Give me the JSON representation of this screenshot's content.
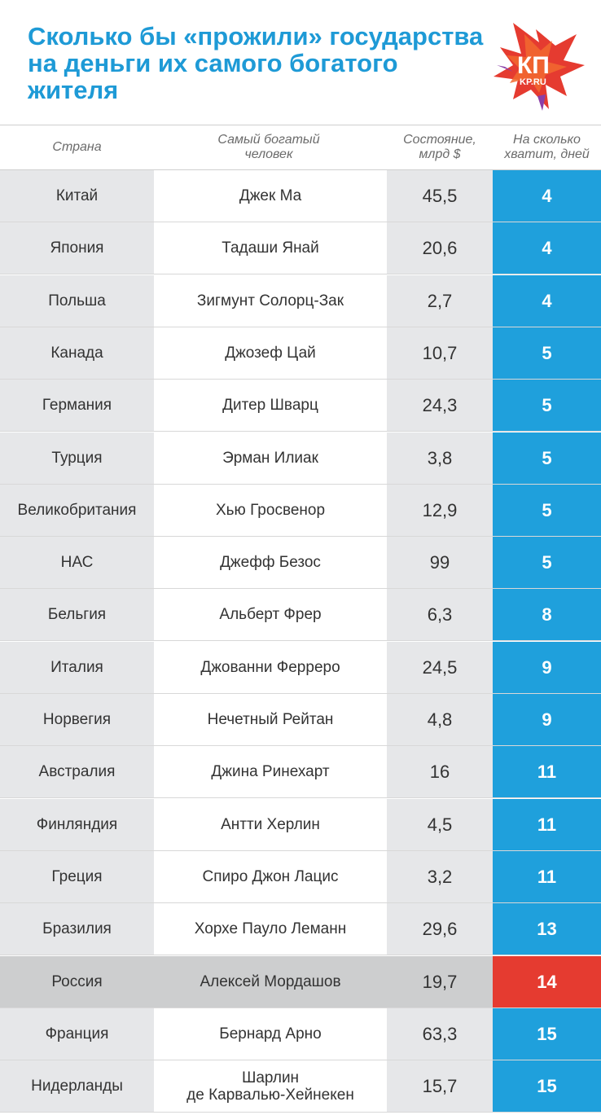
{
  "title": "Сколько бы «прожили» государства на деньги их самого богатого жителя",
  "logo": {
    "text": "КП",
    "subtext": "KP.RU"
  },
  "colors": {
    "accent": "#1e9ad6",
    "days_bg": "#1fa0dc",
    "highlight_bg": "#e53b30",
    "country_bg": "#e6e7e9"
  },
  "chart_data": {
    "type": "table",
    "columns": [
      "Страна",
      "Самый богатый человек",
      "Состояние, млрд $",
      "На сколько хватит, дней"
    ],
    "highlight": "Россия",
    "rows": [
      {
        "country": "Китай",
        "person": "Джек Ма",
        "wealth": "45,5",
        "days": "4"
      },
      {
        "country": "Япония",
        "person": "Тадаши Янай",
        "wealth": "20,6",
        "days": "4"
      },
      {
        "country": "Польша",
        "person": "Зигмунт Солорц-Зак",
        "wealth": "2,7",
        "days": "4"
      },
      {
        "country": "Канада",
        "person": "Джозеф Цай",
        "wealth": "10,7",
        "days": "5"
      },
      {
        "country": "Германия",
        "person": "Дитер Шварц",
        "wealth": "24,3",
        "days": "5"
      },
      {
        "country": "Турция",
        "person": "Эрман Илиак",
        "wealth": "3,8",
        "days": "5"
      },
      {
        "country": "Великобритания",
        "person": "Хью Гросвенор",
        "wealth": "12,9",
        "days": "5"
      },
      {
        "country": "НАС",
        "person": "Джефф Безос",
        "wealth": "99",
        "days": "5"
      },
      {
        "country": "Бельгия",
        "person": "Альберт Фрер",
        "wealth": "6,3",
        "days": "8"
      },
      {
        "country": "Италия",
        "person": "Джованни Ферреро",
        "wealth": "24,5",
        "days": "9"
      },
      {
        "country": "Норвегия",
        "person": "Нечетный Рейтан",
        "wealth": "4,8",
        "days": "9"
      },
      {
        "country": "Австралия",
        "person": "Джина Ринехарт",
        "wealth": "16",
        "days": "11"
      },
      {
        "country": "Финляндия",
        "person": "Антти Херлин",
        "wealth": "4,5",
        "days": "11"
      },
      {
        "country": "Греция",
        "person": "Спиро Джон Лацис",
        "wealth": "3,2",
        "days": "11"
      },
      {
        "country": "Бразилия",
        "person": "Хорхе Пауло Леманн",
        "wealth": "29,6",
        "days": "13"
      },
      {
        "country": "Россия",
        "person": "Алексей Мордашов",
        "wealth": "19,7",
        "days": "14"
      },
      {
        "country": "Франция",
        "person": "Бернард Арно",
        "wealth": "63,3",
        "days": "15"
      },
      {
        "country": "Нидерланды",
        "person": "Шарлин\nде Карвалью-Хейнекен",
        "wealth": "15,7",
        "days": "15"
      }
    ]
  }
}
